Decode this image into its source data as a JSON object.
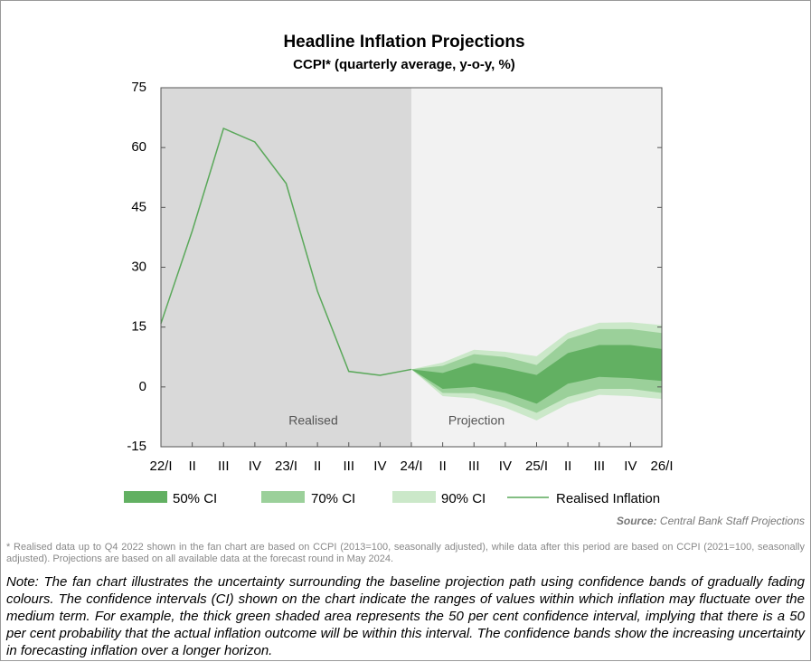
{
  "chart_data": {
    "type": "fan",
    "title": "Headline Inflation Projections",
    "subtitle": "CCPI* (quarterly average, y-o-y, %)",
    "categories": [
      "22/I",
      "II",
      "III",
      "IV",
      "23/I",
      "II",
      "III",
      "IV",
      "24/I",
      "II",
      "III",
      "IV",
      "25/I",
      "II",
      "III",
      "IV",
      "26/I"
    ],
    "ylim": [
      -15,
      75
    ],
    "yticks": [
      -15,
      0,
      15,
      30,
      45,
      60,
      75
    ],
    "annotations": [
      "Realised",
      "Projection"
    ],
    "bands": [
      {
        "name": "90% CI",
        "color": "#cbe8c9",
        "lower": [
          null,
          null,
          null,
          null,
          null,
          null,
          null,
          null,
          4.4,
          -2.3,
          -2.9,
          -5.2,
          -8.4,
          -4.3,
          -2.0,
          -2.3,
          -3.0
        ],
        "upper": [
          null,
          null,
          null,
          null,
          null,
          null,
          null,
          null,
          4.4,
          6.1,
          9.3,
          8.8,
          7.7,
          13.6,
          16.1,
          16.2,
          15.5
        ]
      },
      {
        "name": "70% CI",
        "color": "#9bd09a",
        "lower": [
          null,
          null,
          null,
          null,
          null,
          null,
          null,
          null,
          4.4,
          -1.5,
          -1.6,
          -3.5,
          -6.5,
          -2.5,
          -0.5,
          -0.5,
          -1.5
        ],
        "upper": [
          null,
          null,
          null,
          null,
          null,
          null,
          null,
          null,
          4.4,
          5.3,
          8.2,
          7.5,
          5.5,
          12.0,
          14.5,
          14.5,
          13.5
        ]
      },
      {
        "name": "50% CI",
        "color": "#62b062",
        "lower": [
          null,
          null,
          null,
          null,
          null,
          null,
          null,
          null,
          4.4,
          -0.5,
          0.0,
          -1.5,
          -4.2,
          0.8,
          2.5,
          2.2,
          1.5
        ],
        "upper": [
          null,
          null,
          null,
          null,
          null,
          null,
          null,
          null,
          4.4,
          3.5,
          6.0,
          4.7,
          3.0,
          8.5,
          10.5,
          10.5,
          9.5
        ]
      }
    ],
    "series": [
      {
        "name": "Realised Inflation",
        "color": "#5aa85a",
        "values": [
          15.9,
          39.1,
          64.8,
          61.4,
          51.0,
          24.0,
          3.9,
          2.9,
          4.4,
          null,
          null,
          null,
          null,
          null,
          null,
          null,
          null
        ]
      }
    ]
  },
  "source_label": "Source:",
  "source": "Central Bank Staff Projections",
  "footnote": "* Realised data up to Q4 2022 shown in the fan chart are based on CCPI (2013=100, seasonally adjusted), while data after this period are based on CCPI (2021=100, seasonally adjusted). Projections are based on all available data at the forecast round in May 2024.",
  "note": "Note: The fan chart illustrates the uncertainty surrounding the baseline projection path using confidence bands of gradually fading colours. The confidence intervals (CI) shown on the chart indicate the ranges of values within which inflation may fluctuate over the medium term. For example, the thick green shaded area represents the 50 per cent confidence interval, implying that there is a 50 per cent probability that the actual inflation outcome will be within this interval. The confidence bands show the increasing uncertainty in forecasting inflation over a longer horizon."
}
